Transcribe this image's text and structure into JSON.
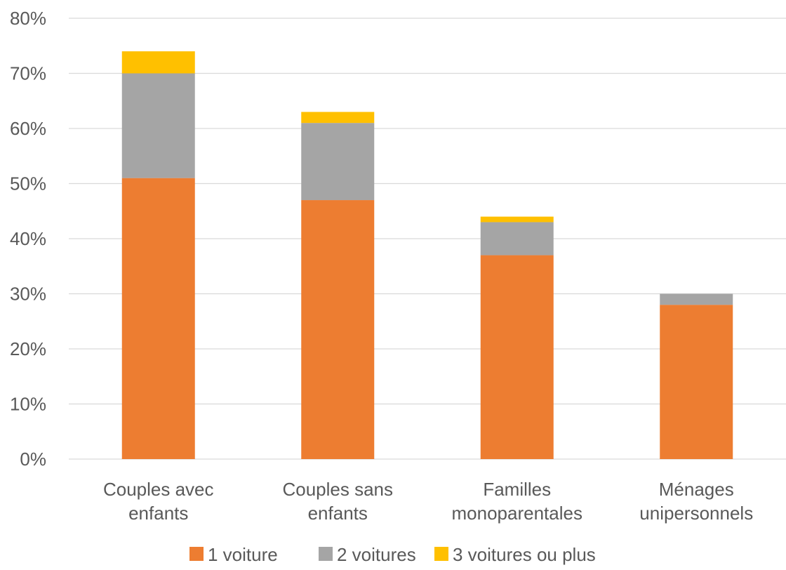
{
  "chart_data": {
    "type": "bar",
    "stacked": true,
    "categories": [
      [
        "Couples avec",
        "enfants"
      ],
      [
        "Couples sans",
        "enfants"
      ],
      [
        "Familles",
        "monoparentales"
      ],
      [
        "Ménages",
        "unipersonnels"
      ]
    ],
    "series": [
      {
        "name": "1 voiture",
        "color": "#ED7D31",
        "values": [
          51,
          47,
          37,
          28
        ]
      },
      {
        "name": "2 voitures",
        "color": "#A5A5A5",
        "values": [
          19,
          14,
          6,
          2
        ]
      },
      {
        "name": "3 voitures ou plus",
        "color": "#FFC000",
        "values": [
          4,
          2,
          1,
          0
        ]
      }
    ],
    "yticks": [
      "0%",
      "10%",
      "20%",
      "30%",
      "40%",
      "50%",
      "60%",
      "70%",
      "80%"
    ],
    "ylim": [
      0,
      80
    ],
    "grid": true,
    "legend_position": "bottom",
    "title": "",
    "xlabel": "",
    "ylabel": ""
  }
}
